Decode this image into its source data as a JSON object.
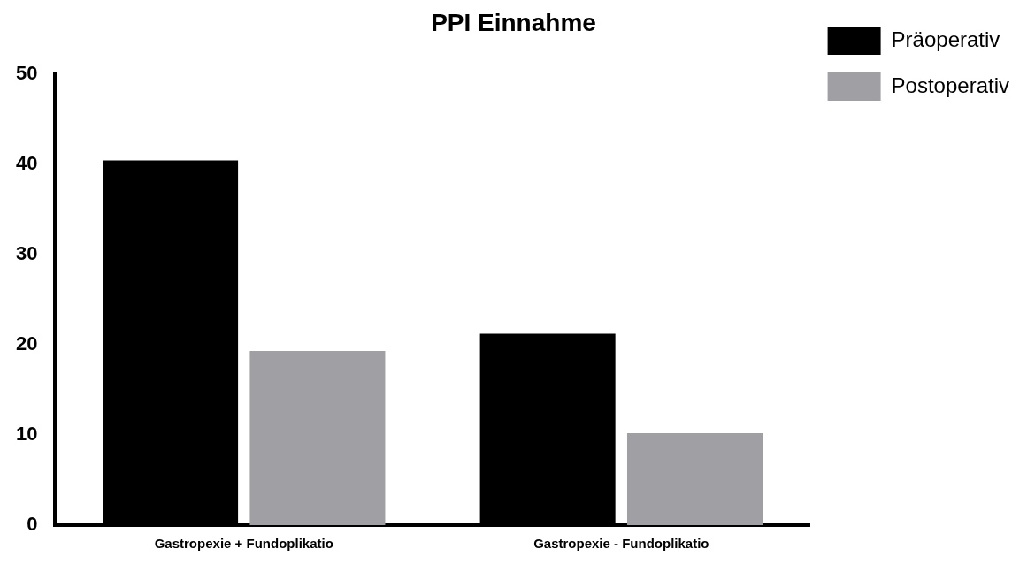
{
  "chart_data": {
    "type": "bar",
    "title": "PPI Einnahme",
    "categories": [
      "Gastropexie + Fundoplikatio",
      "Gastropexie - Fundoplikatio"
    ],
    "series": [
      {
        "name": "Präoperativ",
        "color": "#000000",
        "values": [
          40.4,
          21.2
        ]
      },
      {
        "name": "Postoperativ",
        "color": "#a0a0a4",
        "values": [
          19.3,
          10.2
        ]
      }
    ],
    "ylim": [
      0,
      50
    ],
    "yticks": [
      0,
      10,
      20,
      30,
      40,
      50
    ],
    "grid": false,
    "legend": "top right"
  }
}
